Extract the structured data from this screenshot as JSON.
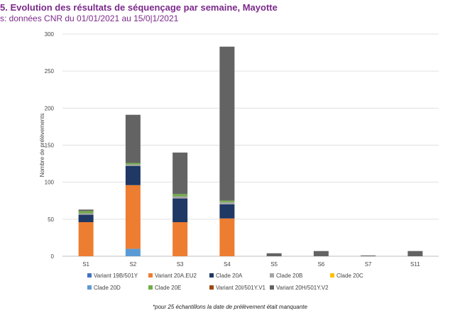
{
  "header": {
    "title": "5. Evolution des résultats de séquençage par semaine, Mayotte",
    "subtitle": "s: données CNR du 01/01/2021 au 15/0|1/2021"
  },
  "footnote": "*pour 25 échantillons la date de prélèvement était manquante",
  "chart_data": {
    "type": "bar",
    "stacked": true,
    "categories": [
      "S1",
      "S2",
      "S3",
      "S4",
      "S5",
      "S6",
      "S7",
      "S11"
    ],
    "ylabel": "Nombre de prélèvements",
    "xlabel": "",
    "ylim": [
      0,
      300
    ],
    "yticks": [
      0,
      50,
      100,
      150,
      200,
      250,
      300
    ],
    "grid": true,
    "legend_position": "bottom",
    "series": [
      {
        "name": "Variant 19B/501Y",
        "color": "#4472c4",
        "values": [
          0,
          0,
          0,
          0,
          0,
          0,
          0,
          0
        ]
      },
      {
        "name": "Variant 20A.EU2",
        "color": "#ed7d31",
        "values": [
          46,
          86,
          46,
          51,
          0,
          0,
          0,
          0
        ]
      },
      {
        "name": "Clade 20A",
        "color": "#1f3864",
        "values": [
          10,
          26,
          32,
          19,
          0,
          0,
          0,
          0
        ]
      },
      {
        "name": "Clade 20B",
        "color": "#a5a5a5",
        "values": [
          2,
          2,
          3,
          3,
          0,
          0,
          0,
          0
        ]
      },
      {
        "name": "Clade 20C",
        "color": "#ffc000",
        "values": [
          0,
          0,
          0,
          0,
          0,
          0,
          0,
          0
        ]
      },
      {
        "name": "Clade 20D",
        "color": "#5b9bd5",
        "values": [
          0,
          10,
          0,
          0,
          0,
          0,
          0,
          0
        ]
      },
      {
        "name": "Clade 20E",
        "color": "#70ad47",
        "values": [
          3,
          2,
          3,
          2,
          0,
          0,
          0,
          0
        ]
      },
      {
        "name": "Variant 20I/501Y.V1",
        "color": "#9e480e",
        "values": [
          0,
          0,
          0,
          0,
          0,
          0,
          0,
          0
        ]
      },
      {
        "name": "Variant 20H/501Y.V2",
        "color": "#636363",
        "values": [
          2,
          65,
          56,
          208,
          4,
          7,
          1,
          7
        ]
      }
    ],
    "stack_order": [
      5,
      0,
      1,
      2,
      3,
      4,
      6,
      7,
      8
    ]
  }
}
